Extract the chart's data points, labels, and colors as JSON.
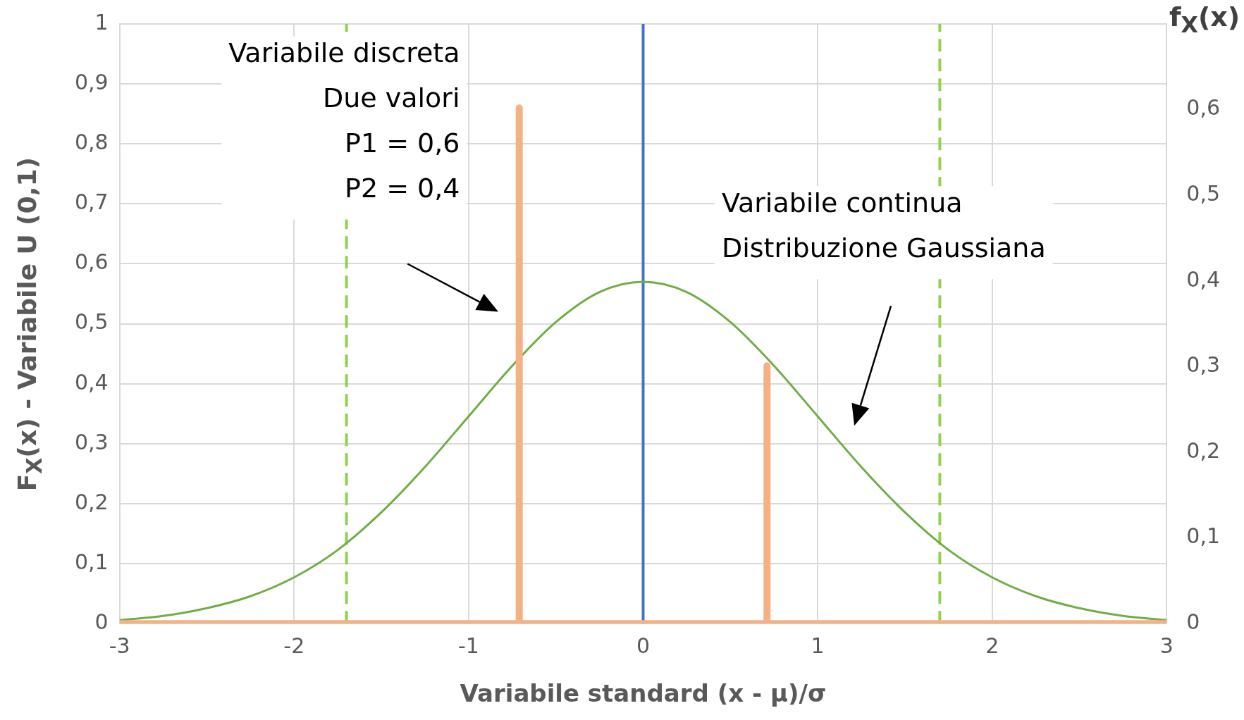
{
  "chart_data": {
    "type": "line",
    "xlabel": "Variabile standard (x - μ)/σ",
    "ylabel": "F$_{X}$(x) - Variabile U (0,1)",
    "y2label": "f$_{X}$(x)",
    "xlim": [
      -3,
      3
    ],
    "xticks": [
      -3,
      -2,
      -1,
      0,
      1,
      2,
      3
    ],
    "ylim": [
      0,
      1
    ],
    "yticks": [
      0,
      {
        "value": 0.1,
        "label": "0,1"
      },
      {
        "value": 0.2,
        "label": "0,2"
      },
      {
        "value": 0.3,
        "label": "0,3"
      },
      {
        "value": 0.4,
        "label": "0,4"
      },
      {
        "value": 0.5,
        "label": "0,5"
      },
      {
        "value": 0.6,
        "label": "0,6"
      },
      {
        "value": 0.7,
        "label": "0,7"
      },
      {
        "value": 0.8,
        "label": "0,8"
      },
      {
        "value": 0.9,
        "label": "0,9"
      },
      1
    ],
    "y2lim": [
      0,
      0.7
    ],
    "y2ticks": [
      0,
      {
        "value": 0.1,
        "label": "0,1"
      },
      {
        "value": 0.2,
        "label": "0,2"
      },
      {
        "value": 0.3,
        "label": "0,3"
      },
      {
        "value": 0.4,
        "label": "0,4"
      },
      {
        "value": 0.5,
        "label": "0,5"
      },
      {
        "value": 0.6,
        "label": "0,6"
      }
    ],
    "grid": true,
    "legend": false,
    "marker": "none",
    "series": [
      {
        "color": "#f4b183",
        "x": [
          -3,
          -0.71,
          -0.71,
          -0.71,
          0.71,
          0.71,
          0.71,
          3
        ],
        "values": [
          0,
          0,
          0.86,
          0,
          0,
          0.43,
          0,
          0
        ]
      },
      {
        "color": "#70ad47",
        "axis": "y2",
        "x": [
          -3,
          -2.75,
          -2.5,
          -2.25,
          -2,
          -1.75,
          -1.5,
          -1.25,
          -1,
          -0.75,
          -0.5,
          -0.25,
          0,
          0.25,
          0.5,
          0.75,
          1,
          1.25,
          1.5,
          1.75,
          2,
          2.25,
          2.5,
          2.75,
          3
        ],
        "values": [
          0.004,
          0.009,
          0.018,
          0.032,
          0.054,
          0.086,
          0.13,
          0.183,
          0.242,
          0.301,
          0.352,
          0.387,
          0.399,
          0.387,
          0.352,
          0.301,
          0.242,
          0.183,
          0.13,
          0.086,
          0.054,
          0.032,
          0.018,
          0.009,
          0.004
        ]
      }
    ],
    "ref_lines": [
      {
        "axis": "x",
        "value": 0,
        "color": "#4472c4"
      },
      {
        "axis": "x",
        "value": -1.7,
        "color": "#92d050",
        "line_style": "dashed"
      },
      {
        "axis": "x",
        "value": 1.7,
        "color": "#92d050",
        "line_style": "dashed"
      }
    ],
    "annotations": [
      "Variabile discreta\nDue valori\nP1 = 0,6\nP2 = 0,4",
      "Variabile continua\nDistribuzione Gaussiana"
    ]
  }
}
